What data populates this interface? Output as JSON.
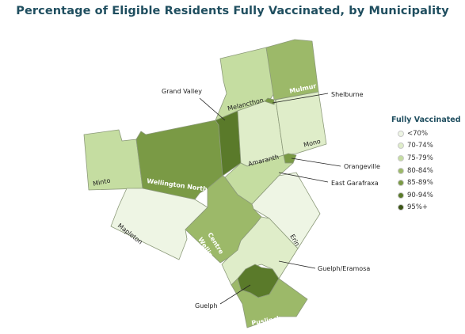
{
  "title": "Percentage of Eligible Residents Fully Vaccinated, by Municipality",
  "legend": {
    "title": "Fully Vaccinated",
    "items": [
      {
        "label": "<70%",
        "color": "#eef5e4"
      },
      {
        "label": "70-74%",
        "color": "#dfedc9"
      },
      {
        "label": "75-79%",
        "color": "#c5dda1"
      },
      {
        "label": "80-84%",
        "color": "#9cb969"
      },
      {
        "label": "85-89%",
        "color": "#7a9a45"
      },
      {
        "label": "90-94%",
        "color": "#5a7a2a"
      },
      {
        "label": "95%+",
        "color": "#3c5516"
      }
    ]
  },
  "map_labels": {
    "melancthon": "Melancthon",
    "mulmur": "Mulmur",
    "shelburne": "Shelburne",
    "grand_valley": "Grand Valley",
    "amaranth": "Amaranth",
    "mono": "Mono",
    "minto": "Minto",
    "wellington_north": "Wellington North",
    "orangeville": "Orangeville",
    "east_garafraxa": "East Garafraxa",
    "mapleton": "Mapleton",
    "centre_wellington_1": "Centre",
    "centre_wellington_2": "Wellington",
    "erin": "Erin",
    "guelph_eramosa": "Guelph/Eramosa",
    "guelph": "Guelph",
    "puslinch": "Puslinch"
  }
}
